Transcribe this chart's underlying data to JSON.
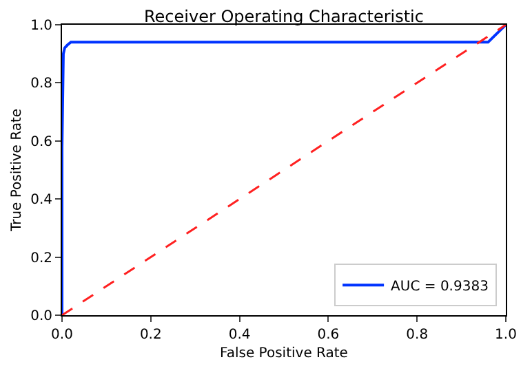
{
  "chart_data": {
    "type": "line",
    "title": "Receiver Operating Characteristic",
    "xlabel": "False Positive Rate",
    "ylabel": "True Positive Rate",
    "series": [
      {
        "name": "AUC = 0.9383",
        "color": "#0033ff",
        "x": [
          0,
          0,
          0.003,
          0.006,
          0.012,
          0.02,
          0.96,
          1
        ],
        "values": [
          0,
          0.58,
          0.9,
          0.92,
          0.93,
          0.94,
          0.94,
          1
        ]
      },
      {
        "color": "#ff2020",
        "line_style": "dashed",
        "x": [
          0,
          1
        ],
        "values": [
          0,
          1
        ]
      }
    ],
    "xlim": [
      0,
      1
    ],
    "ylim": [
      0,
      1
    ],
    "xticks": [
      {
        "value": 0,
        "label": "0.0"
      },
      0.2,
      0.4,
      0.6,
      0.8,
      {
        "value": 1,
        "label": "1.0"
      }
    ],
    "yticks": [
      {
        "value": 0,
        "label": "0.0"
      },
      0.2,
      0.4,
      0.6,
      0.8,
      {
        "value": 1,
        "label": "1.0"
      }
    ],
    "legend": "bottom right"
  }
}
